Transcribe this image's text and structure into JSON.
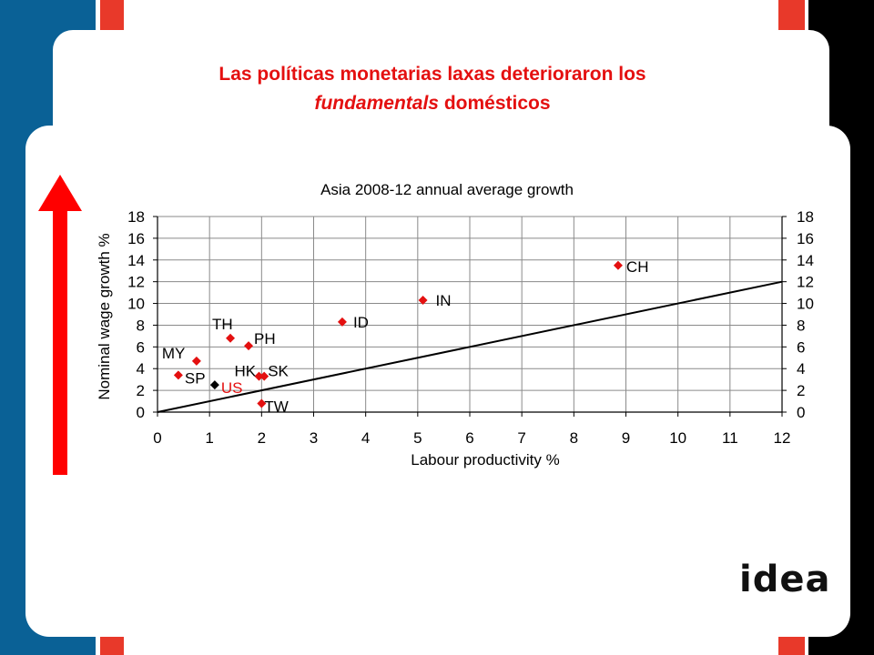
{
  "slide": {
    "title_line1": "Las políticas monetarias laxas deterioraron los",
    "title_italic": "fundamentals",
    "title_rest": " domésticos",
    "logo_text": "idea",
    "colors": {
      "blue": "#0a6196",
      "red": "#e41010",
      "accent": "#e8392a",
      "black": "#000000"
    },
    "icons": {
      "arrow": "up-arrow-icon"
    }
  },
  "chart_data": {
    "type": "scatter",
    "title": "Asia 2008-12 annual average growth",
    "xlabel": "Labour productivity %",
    "ylabel": "Nominal wage growth %",
    "xlim": [
      0,
      12
    ],
    "ylim": [
      0,
      18
    ],
    "xticks": [
      0,
      1,
      2,
      3,
      4,
      5,
      6,
      7,
      8,
      9,
      10,
      11,
      12
    ],
    "yticks": [
      0,
      2,
      4,
      6,
      8,
      10,
      12,
      14,
      16,
      18
    ],
    "grid": true,
    "secondary_y_axis": true,
    "points": [
      {
        "label": "CH",
        "x": 8.85,
        "y": 13.5,
        "color": "#e41010",
        "label_color": "#000000"
      },
      {
        "label": "IN",
        "x": 5.1,
        "y": 10.3,
        "color": "#e41010",
        "label_color": "#000000"
      },
      {
        "label": "ID",
        "x": 3.55,
        "y": 8.3,
        "color": "#e41010",
        "label_color": "#000000"
      },
      {
        "label": "TH",
        "x": 1.4,
        "y": 6.8,
        "color": "#e41010",
        "label_color": "#000000"
      },
      {
        "label": "PH",
        "x": 1.75,
        "y": 6.1,
        "color": "#e41010",
        "label_color": "#000000"
      },
      {
        "label": "MY",
        "x": 0.75,
        "y": 4.7,
        "color": "#e41010",
        "label_color": "#000000"
      },
      {
        "label": "SP",
        "x": 0.4,
        "y": 3.4,
        "color": "#e41010",
        "label_color": "#000000"
      },
      {
        "label": "HK",
        "x": 1.95,
        "y": 3.3,
        "color": "#e41010",
        "label_color": "#000000"
      },
      {
        "label": "SK",
        "x": 2.05,
        "y": 3.3,
        "color": "#e41010",
        "label_color": "#000000"
      },
      {
        "label": "US",
        "x": 1.1,
        "y": 2.5,
        "color": "#000000",
        "label_color": "#e41010"
      },
      {
        "label": "TW",
        "x": 2.0,
        "y": 0.8,
        "color": "#e41010",
        "label_color": "#000000"
      }
    ],
    "reference_line": {
      "from": [
        0,
        0
      ],
      "to": [
        12,
        12
      ]
    }
  }
}
